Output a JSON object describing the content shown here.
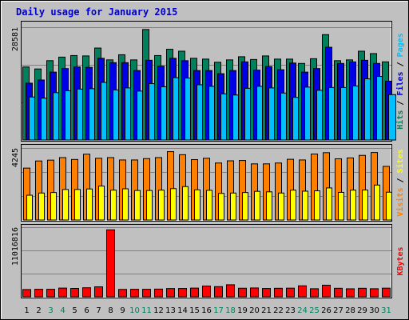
{
  "chart_data": {
    "title": "Daily usage for January 2015",
    "type": "bar",
    "categories": [
      "1",
      "2",
      "3",
      "4",
      "5",
      "6",
      "7",
      "8",
      "9",
      "10",
      "11",
      "12",
      "13",
      "14",
      "15",
      "16",
      "17",
      "18",
      "19",
      "20",
      "21",
      "22",
      "23",
      "24",
      "25",
      "26",
      "27",
      "28",
      "29",
      "30",
      "31"
    ],
    "weekend_days": [
      3,
      4,
      10,
      11,
      17,
      18,
      24,
      25,
      31
    ],
    "colors": {
      "background": "#c0c0c0",
      "plot_bg": "#c0c0c0",
      "title": "#0000cc",
      "hits": "#00805c",
      "files": "#0000e6",
      "pages": "#00c0ff",
      "visits": "#ff8000",
      "sites": "#ffff00",
      "kbytes": "#ff0000",
      "weekday_tick": "#000000",
      "weekend_tick": "#00805c"
    },
    "panels": [
      {
        "id": "hits-files-pages",
        "max_label": "28581",
        "ymax": 28581,
        "legend": [
          {
            "text": "Hits",
            "color": "#00805c"
          },
          {
            "text": "Files",
            "color": "#0000e6"
          },
          {
            "text": "Pages",
            "color": "#00c0ff"
          }
        ],
        "series": [
          {
            "name": "Hits",
            "color": "#00805c",
            "values": [
              18500,
              18000,
              20100,
              21000,
              21400,
              21300,
              23300,
              20300,
              21600,
              20300,
              28000,
              21400,
              23000,
              22500,
              20700,
              20500,
              19700,
              20300,
              21100,
              20400,
              21300,
              20500,
              20500,
              19400,
              20600,
              26700,
              20100,
              20300,
              22500,
              21900,
              19800
            ]
          },
          {
            "name": "Files",
            "color": "#0000e6",
            "values": [
              14400,
              15200,
              17200,
              18100,
              18500,
              18400,
              20700,
              19600,
              19600,
              17600,
              20200,
              18700,
              20700,
              20100,
              17600,
              17600,
              16800,
              17600,
              19800,
              17700,
              18600,
              17800,
              19500,
              17200,
              18100,
              23500,
              19400,
              19800,
              20200,
              19400,
              14900
            ]
          },
          {
            "name": "Pages",
            "color": "#00c0ff",
            "values": [
              10900,
              10600,
              12000,
              12500,
              12900,
              13000,
              14600,
              12700,
              13200,
              12400,
              14300,
              13500,
              15800,
              15700,
              14000,
              13600,
              11700,
              11400,
              13100,
              13600,
              13200,
              11900,
              10800,
              13400,
              12600,
              13300,
              13300,
              13700,
              15500,
              16100,
              11500
            ]
          }
        ]
      },
      {
        "id": "visits-sites",
        "max_label": "4245",
        "ymax": 4245,
        "legend": [
          {
            "text": "Visits",
            "color": "#ff8000"
          },
          {
            "text": "Sites",
            "color": "#ffff00"
          }
        ],
        "series": [
          {
            "name": "Visits",
            "color": "#ff8000",
            "values": [
              3060,
              3480,
              3530,
              3680,
              3570,
              3880,
              3640,
              3680,
              3540,
              3540,
              3620,
              3680,
              4030,
              3850,
              3560,
              3640,
              3360,
              3490,
              3510,
              3310,
              3310,
              3360,
              3580,
              3540,
              3890,
              3970,
              3610,
              3660,
              3810,
              3980,
              3160
            ]
          },
          {
            "name": "Sites",
            "color": "#ffff00",
            "values": [
              1460,
              1590,
              1620,
              1800,
              1800,
              1830,
              2000,
              1760,
              1840,
              1740,
              1740,
              1760,
              1850,
              1970,
              1780,
              1750,
              1570,
              1590,
              1620,
              1690,
              1660,
              1590,
              1760,
              1700,
              1720,
              1890,
              1630,
              1760,
              1770,
              2060,
              1640
            ]
          }
        ]
      },
      {
        "id": "kbytes",
        "max_label": "11016816",
        "ymax": 11016816,
        "legend": [
          {
            "text": "KBytes",
            "color": "#ff0000"
          }
        ],
        "series": [
          {
            "name": "KBytes",
            "color": "#ff0000",
            "values": [
              1150000,
              1190000,
              1190000,
              1380000,
              1330000,
              1430000,
              1580000,
              10600000,
              1170000,
              1190000,
              1190000,
              1220000,
              1310000,
              1320000,
              1380000,
              1700000,
              1610000,
              1910000,
              1360000,
              1400000,
              1320000,
              1350000,
              1370000,
              1740000,
              1280000,
              1840000,
              1350000,
              1270000,
              1350000,
              1280000,
              1370000
            ]
          }
        ]
      }
    ]
  }
}
